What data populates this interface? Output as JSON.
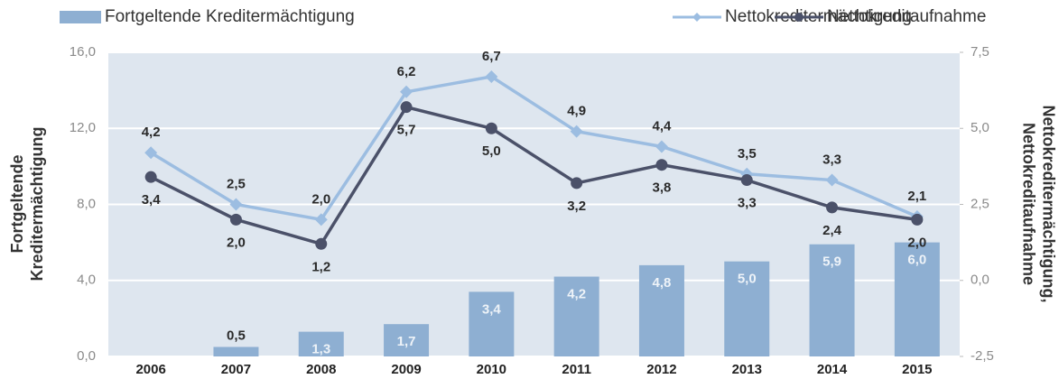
{
  "chart_data": {
    "type": "bar",
    "categories": [
      "2006",
      "2007",
      "2008",
      "2009",
      "2010",
      "2011",
      "2012",
      "2013",
      "2014",
      "2015"
    ],
    "series": [
      {
        "name": "Fortgeltende Kreditermächtigung",
        "type": "bar",
        "color": "#8eafd2",
        "values": [
          null,
          0.5,
          1.3,
          1.7,
          3.4,
          4.2,
          4.8,
          5.0,
          5.9,
          6.0
        ],
        "value_labels": [
          null,
          "0,5",
          "1,3",
          "1,7",
          "3,4",
          "4,2",
          "4,8",
          "5,0",
          "5,9",
          "6,0"
        ]
      },
      {
        "name": "Nettokreditermächtigung",
        "type": "line",
        "axis": "y2",
        "color": "#9cbde1",
        "values": [
          4.2,
          2.5,
          2.0,
          6.2,
          6.7,
          4.9,
          4.4,
          3.5,
          3.3,
          2.1
        ],
        "value_labels": [
          "4,2",
          "2,5",
          "2,0",
          "6,2",
          "6,7",
          "4,9",
          "4,4",
          "3,5",
          "3,3",
          "2,1"
        ]
      },
      {
        "name": "Nettokreditaufnahme",
        "type": "line",
        "axis": "y2",
        "color": "#4b5169",
        "values": [
          3.4,
          2.0,
          1.2,
          5.7,
          5.0,
          3.2,
          3.8,
          3.3,
          2.4,
          2.0
        ],
        "value_labels": [
          "3,4",
          "2,0",
          "1,2",
          "5,7",
          "5,0",
          "3,2",
          "3,8",
          "3,3",
          "2,4",
          "2,0"
        ]
      }
    ],
    "ylim": [
      0,
      16
    ],
    "yticks": [
      {
        "value": 0,
        "label": "0,0"
      },
      {
        "value": 4,
        "label": "4,0"
      },
      {
        "value": 8,
        "label": "8,0"
      },
      {
        "value": 12,
        "label": "12,0"
      },
      {
        "value": 16,
        "label": "16,0"
      }
    ],
    "y2lim": [
      -2.5,
      7.5
    ],
    "y2ticks": [
      {
        "value": -2.5,
        "label": "-2,5"
      },
      {
        "value": 0,
        "label": "0,0"
      },
      {
        "value": 2.5,
        "label": "2,5"
      },
      {
        "value": 5,
        "label": "5,0"
      },
      {
        "value": 7.5,
        "label": "7,5"
      }
    ],
    "y_label": [
      "Fortgeltende",
      "Kreditermächtigung"
    ],
    "y2_label": [
      "Nettokreditermächtigung,",
      "Nettokreditaufnahme"
    ],
    "grid": true
  }
}
